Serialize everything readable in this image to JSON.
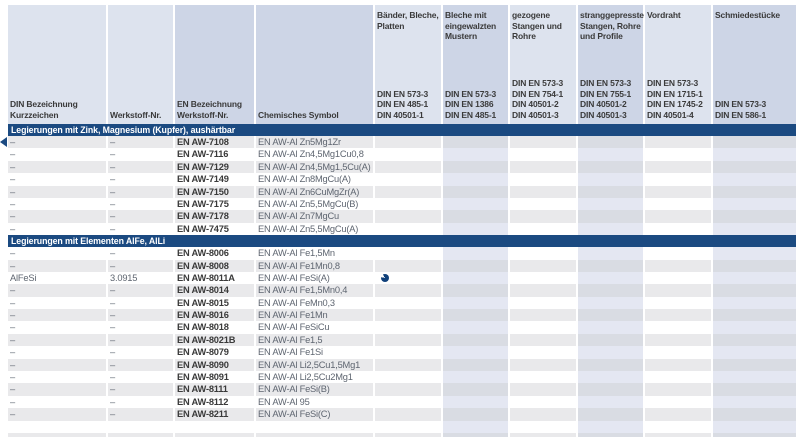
{
  "colors": {
    "navy_bar": "#1b4a81",
    "header_light": "#dde3ee",
    "header_dark": "#cdd5e6",
    "row_gray": "#e9e9eb",
    "row_gray_tint": "#d9dce3",
    "row_white": "#ffffff",
    "row_white_tint": "#e4e7f2",
    "text_dark": "#3a3a3a",
    "text_gray": "#5e6570"
  },
  "table": {
    "left_headers": [
      {
        "lines": [
          "DIN Bezeichnung",
          "Kurzzeichen"
        ],
        "shade": "light"
      },
      {
        "lines": [
          "Werkstoff-Nr."
        ],
        "shade": "light"
      },
      {
        "lines": [
          "EN Bezeichnung",
          "Werkstoff-Nr."
        ],
        "shade": "dark"
      },
      {
        "lines": [
          "Chemisches Symbol"
        ],
        "shade": "dark"
      }
    ],
    "product_columns": [
      {
        "title": "Bänder, Bleche, Platten",
        "standards": [
          "DIN EN 573-3",
          "DIN EN 485-1",
          "DIN 40501-1"
        ]
      },
      {
        "title": "Bleche mit eingewalzten Mustern",
        "standards": [
          "DIN EN 573-3",
          "DIN EN 1386",
          "DIN EN 485-1"
        ]
      },
      {
        "title": "gezogene Stangen und Rohre",
        "standards": [
          "DIN EN 573-3",
          "DIN EN 754-1",
          "DIN 40501-2",
          "DIN 40501-3"
        ]
      },
      {
        "title": "stranggepresste Stangen, Rohre und Profile",
        "standards": [
          "DIN EN 573-3",
          "DIN EN 755-1",
          "DIN 40501-2",
          "DIN 40501-3"
        ]
      },
      {
        "title": "Vordraht",
        "standards": [
          "DIN EN 573-3",
          "DIN EN 1715-1",
          "DIN EN 1745-2",
          "DIN 40501-4"
        ]
      },
      {
        "title": "Schmiedestücke",
        "standards": [
          "DIN EN 573-3",
          "DIN EN 586-1"
        ]
      }
    ],
    "sections": [
      {
        "title": "Legierungen mit Zink, Magnesium (Kupfer), aushärtbar",
        "first_row_shade": "gray",
        "rows": [
          {
            "din": "–",
            "werkstoff": "–",
            "en": "EN AW-7108",
            "symbol": "EN AW-Al Zn5Mg1Zr",
            "marker": true
          },
          {
            "din": "–",
            "werkstoff": "–",
            "en": "EN AW-7116",
            "symbol": "EN AW-Al Zn4,5Mg1Cu0,8"
          },
          {
            "din": "–",
            "werkstoff": "–",
            "en": "EN AW-7129",
            "symbol": "EN AW-Al Zn4,5Mg1,5Cu(A)"
          },
          {
            "din": "–",
            "werkstoff": "–",
            "en": "EN AW-7149",
            "symbol": "EN AW-Al Zn8MgCu(A)"
          },
          {
            "din": "–",
            "werkstoff": "–",
            "en": "EN AW-7150",
            "symbol": "EN AW-Al Zn6CuMgZr(A)"
          },
          {
            "din": "–",
            "werkstoff": "–",
            "en": "EN AW-7175",
            "symbol": "EN AW-Al Zn5,5MgCu(B)"
          },
          {
            "din": "–",
            "werkstoff": "–",
            "en": "EN AW-7178",
            "symbol": "EN AW-Al Zn7MgCu"
          },
          {
            "din": "–",
            "werkstoff": "–",
            "en": "EN AW-7475",
            "symbol": "EN AW-Al Zn5,5MgCu(A)"
          }
        ]
      },
      {
        "title": "Legierungen mit Elementen AlFe, AlLi",
        "first_row_shade": "white",
        "rows": [
          {
            "din": "–",
            "werkstoff": "–",
            "en": "EN AW-8006",
            "symbol": "EN AW-Al Fe1,5Mn"
          },
          {
            "din": "–",
            "werkstoff": "–",
            "en": "EN AW-8008",
            "symbol": "EN AW-Al Fe1Mn0,8"
          },
          {
            "din": "AlFeSi",
            "werkstoff": "3.0915",
            "en": "EN AW-8011A",
            "symbol": "EN AW-Al FeSi(A)",
            "dot_column": 0
          },
          {
            "din": "–",
            "werkstoff": "–",
            "en": "EN AW-8014",
            "symbol": "EN AW-Al Fe1,5Mn0,4"
          },
          {
            "din": "–",
            "werkstoff": "–",
            "en": "EN AW-8015",
            "symbol": "EN AW-Al FeMn0,3"
          },
          {
            "din": "–",
            "werkstoff": "–",
            "en": "EN AW-8016",
            "symbol": "EN AW-Al Fe1Mn"
          },
          {
            "din": "–",
            "werkstoff": "–",
            "en": "EN AW-8018",
            "symbol": "EN AW-Al FeSiCu"
          },
          {
            "din": "–",
            "werkstoff": "–",
            "en": "EN AW-8021B",
            "symbol": "EN AW-Al Fe1,5"
          },
          {
            "din": "–",
            "werkstoff": "–",
            "en": "EN AW-8079",
            "symbol": "EN AW-Al Fe1Si"
          },
          {
            "din": "–",
            "werkstoff": "–",
            "en": "EN AW-8090",
            "symbol": "EN AW-Al Li2,5Cu1,5Mg1"
          },
          {
            "din": "–",
            "werkstoff": "–",
            "en": "EN AW-8091",
            "symbol": "EN AW-Al Li2,5Cu2Mg1"
          },
          {
            "din": "–",
            "werkstoff": "–",
            "en": "EN AW-8111",
            "symbol": "EN AW-Al FeSi(B)"
          },
          {
            "din": "–",
            "werkstoff": "–",
            "en": "EN AW-8112",
            "symbol": "EN AW-Al 95"
          },
          {
            "din": "–",
            "werkstoff": "–",
            "en": "EN AW-8211",
            "symbol": "EN AW-Al FeSi(C)"
          }
        ]
      }
    ]
  }
}
